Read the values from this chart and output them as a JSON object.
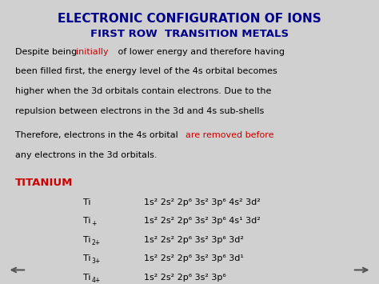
{
  "background_color": "#d0d0d0",
  "title": "ELECTRONIC CONFIGURATION OF IONS",
  "title_color": "#00008B",
  "title_fontsize": 11,
  "subtitle": "FIRST ROW  TRANSITION METALS",
  "subtitle_color": "#00008B",
  "subtitle_fontsize": 9.5,
  "body_fontsize": 8.0,
  "titanium_label": "TITANIUM",
  "titanium_color": "#CC0000",
  "arrow_color": "#555555",
  "configs": [
    {
      "ion": "Ti",
      "superion": "",
      "config": "1s² 2s² 2p⁶ 3s² 3p⁶ 4s² 3d²"
    },
    {
      "ion": "Ti",
      "superion": "+",
      "config": "1s² 2s² 2p⁶ 3s² 3p⁶ 4s¹ 3d²"
    },
    {
      "ion": "Ti",
      "superion": "2+",
      "config": "1s² 2s² 2p⁶ 3s² 3p⁶ 3d²"
    },
    {
      "ion": "Ti",
      "superion": "3+",
      "config": "1s² 2s² 2p⁶ 3s² 3p⁶ 3d¹"
    },
    {
      "ion": "Ti",
      "superion": "4+",
      "config": "1s² 2s² 2p⁶ 3s² 3p⁶"
    }
  ]
}
